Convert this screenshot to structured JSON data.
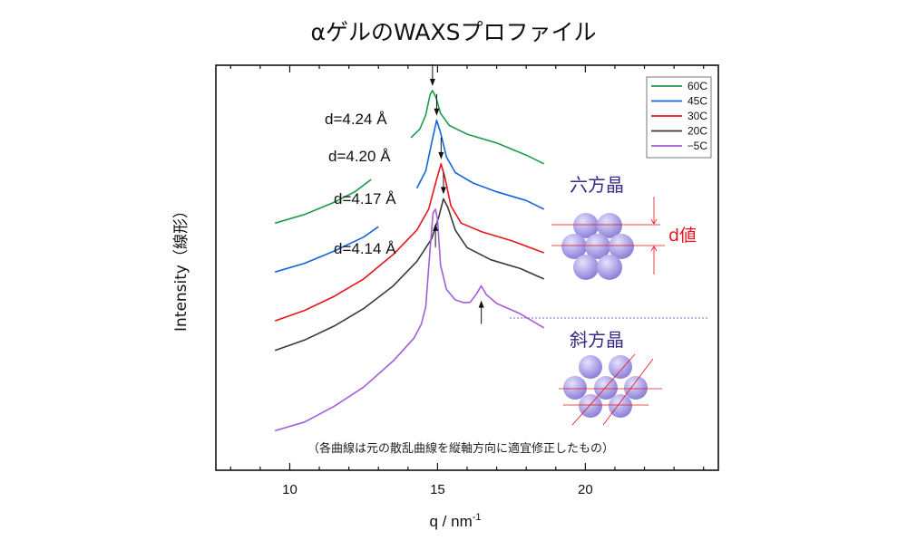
{
  "chart_data": {
    "type": "line",
    "title": "αゲルのWAXSプロファイル",
    "xlabel": "q / nm",
    "xlabel_superscript": "-1",
    "ylabel": "Intensity（線形）",
    "xlim": [
      7.5,
      24.5
    ],
    "x_ticks_major": [
      10,
      15,
      20
    ],
    "x_ticks_minor_step": 1,
    "y_ticks": [],
    "grid": false,
    "legend_position": "top-right",
    "legend": [
      "60C",
      "45C",
      "30C",
      "20C",
      "−5C"
    ],
    "series": [
      {
        "name": "60C",
        "color": "#1a9e4a",
        "segments": [
          [
            [
              9.5,
              0.62
            ],
            [
              10.5,
              0.645
            ],
            [
              11.5,
              0.68
            ],
            [
              12.2,
              0.71
            ],
            [
              12.75,
              0.745
            ]
          ],
          [
            [
              14.1,
              0.865
            ],
            [
              14.4,
              0.89
            ],
            [
              14.6,
              0.93
            ],
            [
              14.75,
              0.99
            ],
            [
              14.83,
              1.0
            ],
            [
              14.95,
              0.98
            ],
            [
              15.1,
              0.935
            ],
            [
              15.4,
              0.9
            ],
            [
              16.0,
              0.875
            ],
            [
              17.0,
              0.85
            ],
            [
              18.0,
              0.815
            ],
            [
              18.6,
              0.79
            ]
          ]
        ]
      },
      {
        "name": "45C",
        "color": "#1565d8",
        "segments": [
          [
            [
              9.5,
              0.48
            ],
            [
              10.5,
              0.505
            ],
            [
              11.5,
              0.54
            ],
            [
              12.5,
              0.58
            ],
            [
              13.0,
              0.61
            ]
          ],
          [
            [
              14.3,
              0.72
            ],
            [
              14.6,
              0.77
            ],
            [
              14.8,
              0.85
            ],
            [
              14.97,
              0.915
            ],
            [
              15.1,
              0.88
            ],
            [
              15.3,
              0.81
            ],
            [
              15.6,
              0.765
            ],
            [
              16.2,
              0.735
            ],
            [
              17.0,
              0.71
            ],
            [
              18.0,
              0.685
            ],
            [
              18.6,
              0.66
            ]
          ]
        ]
      },
      {
        "name": "30C",
        "color": "#e8141b",
        "segments": [
          [
            [
              9.5,
              0.34
            ],
            [
              10.5,
              0.37
            ],
            [
              11.5,
              0.41
            ],
            [
              12.5,
              0.46
            ],
            [
              13.5,
              0.53
            ],
            [
              14.3,
              0.6
            ],
            [
              14.7,
              0.66
            ],
            [
              14.95,
              0.74
            ],
            [
              15.12,
              0.79
            ],
            [
              15.25,
              0.75
            ],
            [
              15.45,
              0.67
            ],
            [
              15.8,
              0.62
            ],
            [
              16.5,
              0.595
            ],
            [
              17.5,
              0.57
            ],
            [
              18.6,
              0.535
            ]
          ]
        ]
      },
      {
        "name": "20C",
        "color": "#3a3a3a",
        "segments": [
          [
            [
              9.5,
              0.255
            ],
            [
              10.5,
              0.285
            ],
            [
              11.5,
              0.325
            ],
            [
              12.5,
              0.375
            ],
            [
              13.5,
              0.44
            ],
            [
              14.3,
              0.51
            ],
            [
              14.8,
              0.575
            ],
            [
              15.05,
              0.64
            ],
            [
              15.2,
              0.69
            ],
            [
              15.35,
              0.665
            ],
            [
              15.6,
              0.6
            ],
            [
              16.0,
              0.55
            ],
            [
              16.8,
              0.515
            ],
            [
              17.8,
              0.49
            ],
            [
              18.6,
              0.46
            ]
          ]
        ]
      },
      {
        "name": "−5C",
        "color": "#a25ddc",
        "segments": [
          [
            [
              9.5,
              0.025
            ],
            [
              10.5,
              0.05
            ],
            [
              11.5,
              0.095
            ],
            [
              12.5,
              0.15
            ],
            [
              13.5,
              0.225
            ],
            [
              14.2,
              0.29
            ],
            [
              14.45,
              0.33
            ],
            [
              14.6,
              0.38
            ],
            [
              14.75,
              0.55
            ],
            [
              14.85,
              0.65
            ],
            [
              14.93,
              0.66
            ],
            [
              15.0,
              0.63
            ],
            [
              15.1,
              0.5
            ],
            [
              15.3,
              0.43
            ],
            [
              15.6,
              0.4
            ],
            [
              15.9,
              0.392
            ],
            [
              16.1,
              0.393
            ],
            [
              16.3,
              0.415
            ],
            [
              16.48,
              0.44
            ],
            [
              16.65,
              0.415
            ],
            [
              17.0,
              0.39
            ],
            [
              17.8,
              0.36
            ],
            [
              18.6,
              0.32
            ]
          ]
        ]
      }
    ],
    "annotations": {
      "d_labels": [
        "d=4.24 Å",
        "d=4.20 Å",
        "d=4.17 Å",
        "d=4.14 Å"
      ],
      "peak_arrows_down_q": [
        14.83,
        14.97,
        15.12,
        15.2
      ],
      "peak_arrows_up_q": [
        14.93,
        16.48
      ],
      "hexagonal_label": "六方晶",
      "orthorhombic_label": "斜方晶",
      "d_value_label": "d値",
      "note": "（各曲線は元の散乱曲線を縦軸方向に適宜修正したもの）"
    },
    "colors": {
      "sphere_fill": "#a99fe3",
      "guide_line": "#e8141b",
      "crystal_label": "#3b2a86",
      "divider": "#7b6fd0"
    }
  }
}
